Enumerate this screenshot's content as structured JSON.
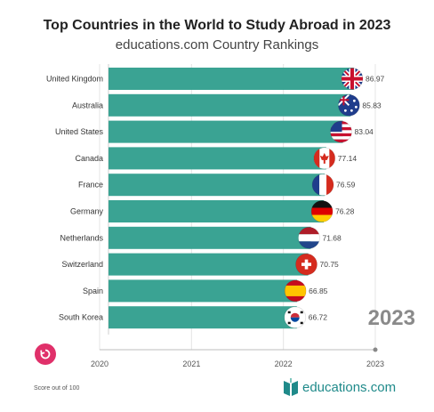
{
  "header": {
    "title": "Top Countries in the World to Study Abroad in 2023",
    "subtitle": "educations.com Country Rankings"
  },
  "footer": {
    "note": "Score out of 100",
    "brand": "educations.com"
  },
  "colors": {
    "bar": "#3aa393",
    "accent": "#e0306a",
    "brand": "#1f8a8a"
  },
  "icons": {
    "replay": "replay-icon",
    "brand_logo": "book-logo-icon"
  },
  "chart_data": {
    "type": "bar",
    "orientation": "horizontal",
    "categories": [
      "United Kingdom",
      "Australia",
      "United States",
      "Canada",
      "France",
      "Germany",
      "Netherlands",
      "Switzerland",
      "Spain",
      "South Korea"
    ],
    "values": [
      86.97,
      85.83,
      83.04,
      77.14,
      76.59,
      76.28,
      71.68,
      70.75,
      66.85,
      66.72
    ],
    "value_labels": [
      "86.97",
      "85.83",
      "83.04",
      "77.14",
      "76.59",
      "76.28",
      "71.68",
      "70.75",
      "66.85",
      "66.72"
    ],
    "flags": [
      "united-kingdom-flag-icon",
      "australia-flag-icon",
      "united-states-flag-icon",
      "canada-flag-icon",
      "france-flag-icon",
      "germany-flag-icon",
      "netherlands-flag-icon",
      "switzerland-flag-icon",
      "spain-flag-icon",
      "south-korea-flag-icon"
    ],
    "timeline_ticks": [
      "2020",
      "2021",
      "2022",
      "2023"
    ],
    "current_year": "2023",
    "grid": true
  }
}
